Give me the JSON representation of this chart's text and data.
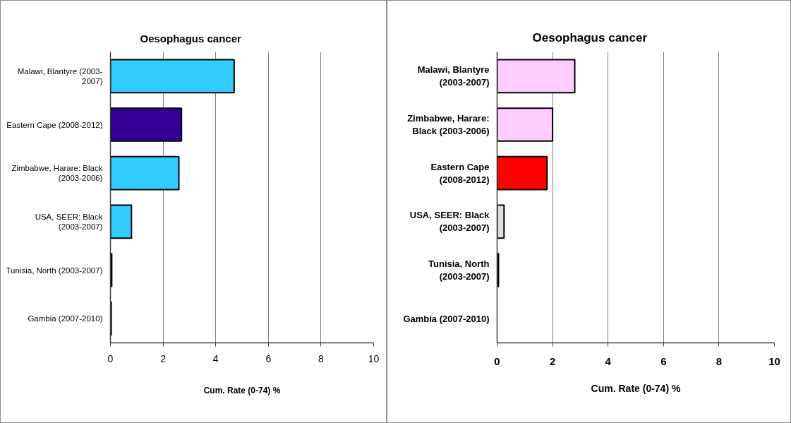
{
  "chart_data": [
    {
      "type": "bar",
      "orientation": "horizontal",
      "title": "Oesophagus cancer",
      "xlabel": "Cum. Rate (0-74) %",
      "categories": [
        "Malawi, Blantyre (2003-\n2007)",
        "Eastern Cape (2008-2012)",
        "Zimbabwe, Harare: Black\n(2003-2006)",
        "USA, SEER: Black\n(2003-2007)",
        "Tunisia, North (2003-2007)",
        "Gambia (2007-2010)"
      ],
      "values": [
        4.7,
        2.7,
        2.6,
        0.8,
        0.05,
        0.03
      ],
      "colors": [
        "#33ccff",
        "#330099",
        "#33ccff",
        "#33ccff",
        "#33ccff",
        "#33ccff"
      ],
      "xlim": [
        0,
        10
      ],
      "xticks": [
        0,
        2,
        4,
        6,
        8,
        10
      ],
      "grid": "x"
    },
    {
      "type": "bar",
      "orientation": "horizontal",
      "title": "Oesophagus cancer",
      "xlabel": "Cum. Rate (0-74) %",
      "categories": [
        "Malawi, Blantyre\n(2003-2007)",
        "Zimbabwe, Harare:\nBlack (2003-2006)",
        "Eastern Cape\n(2008-2012)",
        "USA, SEER: Black\n(2003-2007)",
        "Tunisia, North\n(2003-2007)",
        "Gambia (2007-2010)"
      ],
      "values": [
        2.8,
        2.0,
        1.8,
        0.25,
        0.05,
        null
      ],
      "colors": [
        "#ffccff",
        "#ffccff",
        "#ff0000",
        "#dddddd",
        "#dddddd",
        null
      ],
      "xlim": [
        0,
        10
      ],
      "xticks": [
        0,
        2,
        4,
        6,
        8,
        10
      ],
      "grid": "x"
    }
  ]
}
